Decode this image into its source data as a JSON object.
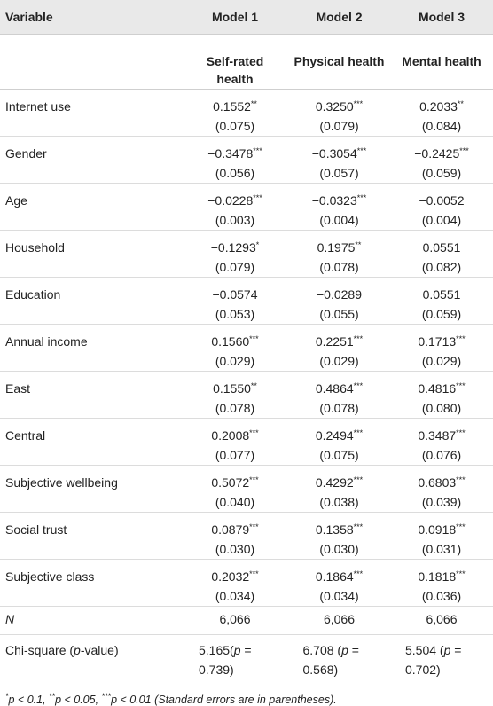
{
  "table": {
    "header": [
      "Variable",
      "Model 1",
      "Model 2",
      "Model 3"
    ],
    "subheader": [
      "Self-rated health",
      "Physical health",
      "Mental health"
    ],
    "rows": [
      {
        "label": "Internet use",
        "cells": [
          {
            "coef": "0.1552",
            "stars": "**",
            "se": "(0.075)"
          },
          {
            "coef": "0.3250",
            "stars": "***",
            "se": "(0.079)"
          },
          {
            "coef": "0.2033",
            "stars": "**",
            "se": "(0.084)"
          }
        ]
      },
      {
        "label": "Gender",
        "cells": [
          {
            "coef": "−0.3478",
            "stars": "***",
            "se": "(0.056)"
          },
          {
            "coef": "−0.3054",
            "stars": "***",
            "se": "(0.057)"
          },
          {
            "coef": "−0.2425",
            "stars": "***",
            "se": "(0.059)"
          }
        ]
      },
      {
        "label": "Age",
        "cells": [
          {
            "coef": "−0.0228",
            "stars": "***",
            "se": "(0.003)"
          },
          {
            "coef": "−0.0323",
            "stars": "***",
            "se": "(0.004)"
          },
          {
            "coef": "−0.0052",
            "se": "(0.004)"
          }
        ]
      },
      {
        "label": "Household",
        "cells": [
          {
            "coef": "−0.1293",
            "stars": "*",
            "se": "(0.079)"
          },
          {
            "coef": "0.1975",
            "stars": "**",
            "se": "(0.078)"
          },
          {
            "coef": "0.0551",
            "se": "(0.082)"
          }
        ]
      },
      {
        "label": "Education",
        "cells": [
          {
            "coef": "−0.0574",
            "se": "(0.053)"
          },
          {
            "coef": "−0.0289",
            "se": "(0.055)"
          },
          {
            "coef": "0.0551",
            "se": "(0.059)"
          }
        ]
      },
      {
        "label": "Annual income",
        "cells": [
          {
            "coef": "0.1560",
            "stars": "***",
            "se": "(0.029)"
          },
          {
            "coef": "0.2251",
            "stars": "***",
            "se": "(0.029)"
          },
          {
            "coef": "0.1713",
            "stars": "***",
            "se": "(0.029)"
          }
        ]
      },
      {
        "label": "East",
        "cells": [
          {
            "coef": "0.1550",
            "stars": "**",
            "se": "(0.078)"
          },
          {
            "coef": "0.4864",
            "stars": "***",
            "se": "(0.078)"
          },
          {
            "coef": "0.4816",
            "stars": "***",
            "se": "(0.080)"
          }
        ]
      },
      {
        "label": "Central",
        "cells": [
          {
            "coef": "0.2008",
            "stars": "***",
            "se": "(0.077)"
          },
          {
            "coef": "0.2494",
            "stars": "***",
            "se": "(0.075)"
          },
          {
            "coef": "0.3487",
            "stars": "***",
            "se": "(0.076)"
          }
        ]
      },
      {
        "label": "Subjective wellbeing",
        "cells": [
          {
            "coef": "0.5072",
            "stars": "***",
            "se": "(0.040)"
          },
          {
            "coef": "0.4292",
            "stars": "***",
            "se": "(0.038)"
          },
          {
            "coef": "0.6803",
            "stars": "***",
            "se": "(0.039)"
          }
        ]
      },
      {
        "label": "Social trust",
        "cells": [
          {
            "coef": "0.0879",
            "stars": "***",
            "se": "(0.030)"
          },
          {
            "coef": "0.1358",
            "stars": "***",
            "se": "(0.030)"
          },
          {
            "coef": "0.0918",
            "stars": "***",
            "se": "(0.031)"
          }
        ]
      },
      {
        "label": "Subjective class",
        "cells": [
          {
            "coef": "0.2032",
            "stars": "***",
            "se": "(0.034)"
          },
          {
            "coef": "0.1864",
            "stars": "***",
            "se": "(0.034)"
          },
          {
            "coef": "0.1818",
            "stars": "***",
            "se": "(0.036)"
          }
        ]
      }
    ],
    "n_row": {
      "label": "N",
      "values": [
        "6,066",
        "6,066",
        "6,066"
      ]
    },
    "chi_row": {
      "label": {
        "pre": "Chi-square (",
        "p": "p",
        "post": "-value)"
      },
      "cells": [
        {
          "pre": "5.165(",
          "p": "p",
          "post": " = 0.739)"
        },
        {
          "pre": "6.708 (",
          "p": "p",
          "post": " = 0.568)"
        },
        {
          "pre": "5.504 (",
          "p": "p",
          "post": " = 0.702)"
        }
      ]
    },
    "footnote": {
      "items": [
        {
          "stars": "*",
          "text": "p < 0.1, "
        },
        {
          "stars": "**",
          "text": "p < 0.05, "
        },
        {
          "stars": "***",
          "text": "p < 0.01 "
        }
      ],
      "note": "(Standard errors are in parentheses)."
    }
  }
}
